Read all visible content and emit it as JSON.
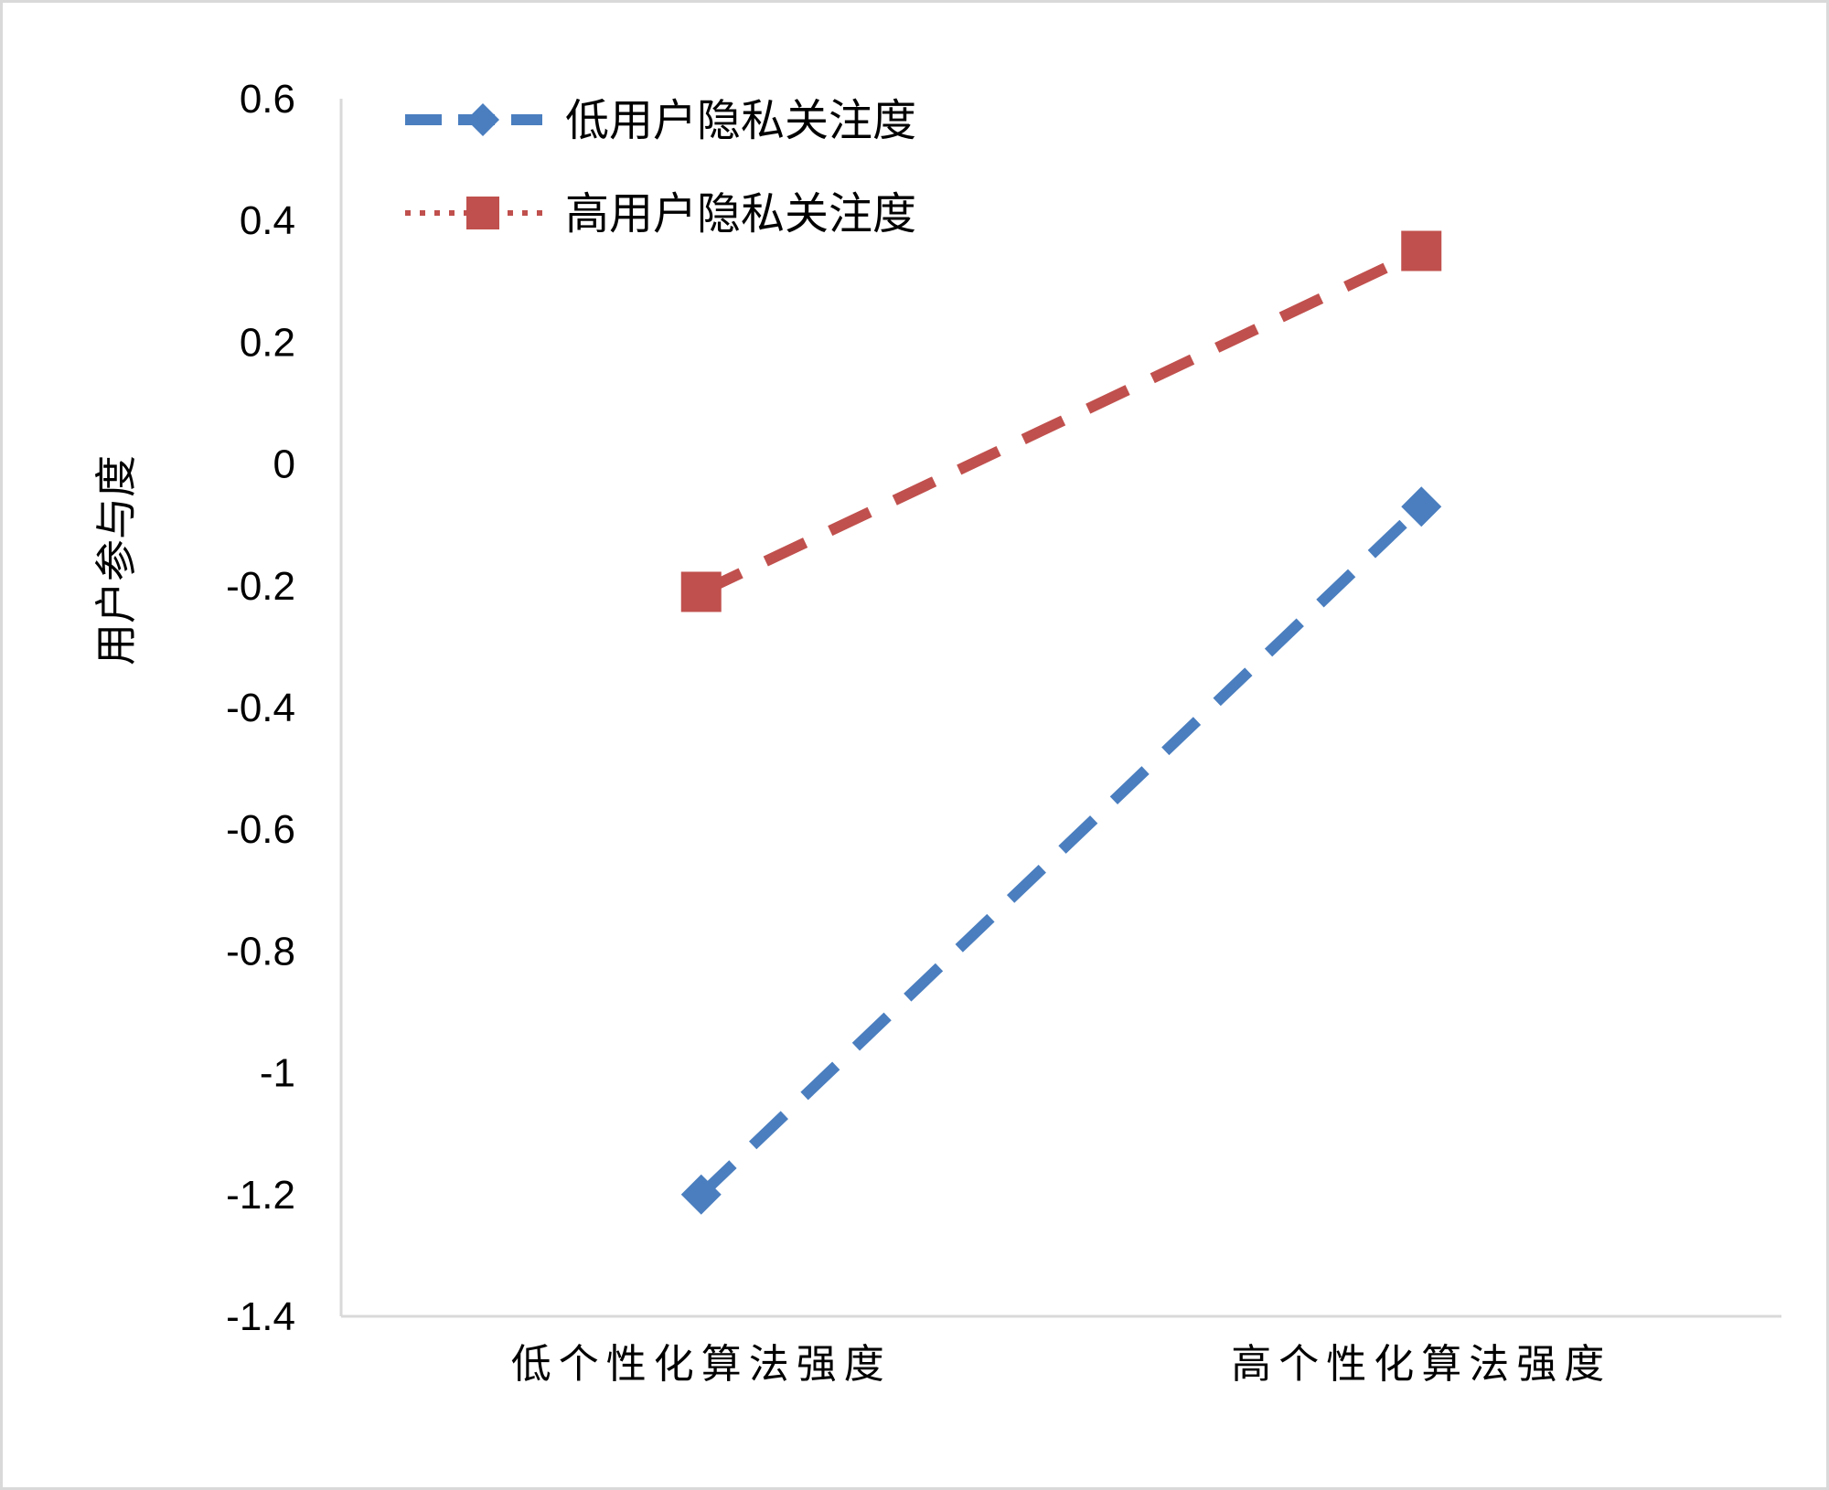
{
  "chart_data": {
    "type": "line",
    "categories": [
      "低个性化算法强度",
      "高个性化算法强度"
    ],
    "ylabel": "用户参与度",
    "ylim": [
      -1.4,
      0.6
    ],
    "yticks": [
      "0.6",
      "0.4",
      "0.2",
      "0",
      "-0.2",
      "-0.4",
      "-0.6",
      "-0.8",
      "-1",
      "-1.2",
      "-1.4"
    ],
    "grid": false,
    "legend_position": "top-left",
    "series": [
      {
        "name": "低用户隐私关注度",
        "values": [
          -1.2,
          -0.07
        ],
        "color": "#4a7ebf",
        "marker": "diamond",
        "line_style": "dashed",
        "legend_line_style": "dashed"
      },
      {
        "name": "高用户隐私关注度",
        "values": [
          -0.21,
          0.35
        ],
        "color": "#c0504d",
        "marker": "square",
        "line_style": "dashed",
        "legend_line_style": "dotted"
      }
    ]
  }
}
